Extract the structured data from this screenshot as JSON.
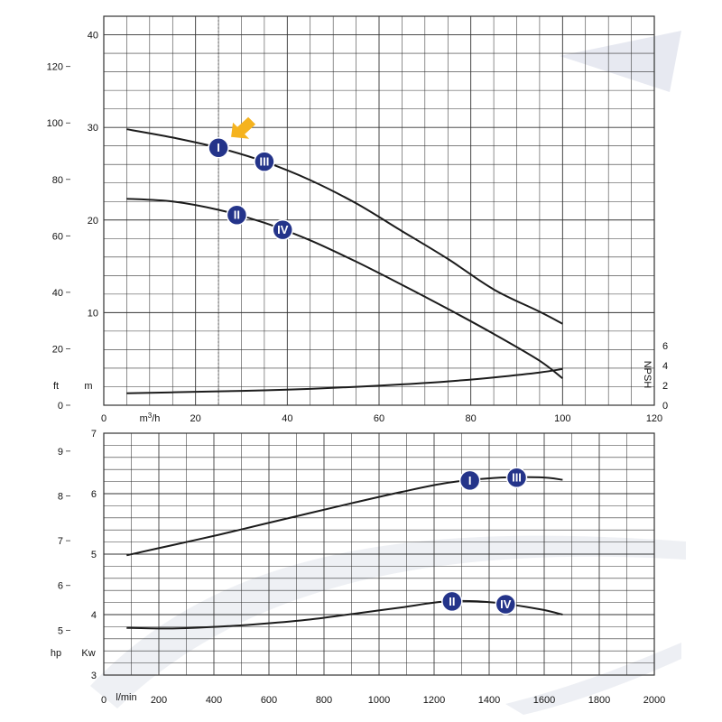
{
  "colors": {
    "grid": "#333333",
    "curve": "#1c1c1c",
    "badge": "#24348a",
    "arrow": "#f5b31e",
    "watermark": "#e3e6ee"
  },
  "chart_data": [
    {
      "type": "line",
      "title": "",
      "x_axis": {
        "unit": "m3/h",
        "ticks": [
          0,
          20,
          40,
          60,
          80,
          100,
          120
        ],
        "range": [
          0,
          120
        ]
      },
      "y_axis_left_m": {
        "unit": "m",
        "ticks": [
          10,
          20,
          30,
          40
        ],
        "range": [
          0,
          42
        ]
      },
      "y_axis_left_ft": {
        "unit": "ft",
        "ticks": [
          0,
          20,
          40,
          60,
          80,
          100,
          120
        ],
        "range": [
          0,
          137.8
        ]
      },
      "y_axis_right": {
        "unit": "NPSH",
        "ticks": [
          0,
          2,
          4,
          6
        ],
        "range": [
          0,
          6
        ]
      },
      "grid": true,
      "series": [
        {
          "name": "I",
          "markers": [
            "I",
            "III"
          ],
          "x": [
            5,
            15,
            25,
            35,
            45,
            55,
            65,
            75,
            85,
            95,
            100
          ],
          "y": [
            29.8,
            28.9,
            27.8,
            26.3,
            24.3,
            21.8,
            18.8,
            15.8,
            12.5,
            10.1,
            8.8
          ]
        },
        {
          "name": "II",
          "markers": [
            "II",
            "IV"
          ],
          "x": [
            5,
            15,
            25,
            35,
            45,
            55,
            65,
            75,
            85,
            95,
            100
          ],
          "y": [
            22.3,
            22.0,
            21.1,
            19.7,
            17.8,
            15.5,
            13.0,
            10.4,
            7.7,
            4.8,
            2.9
          ]
        },
        {
          "name": "NPSH",
          "axis": "right",
          "x": [
            5,
            15,
            25,
            35,
            45,
            55,
            65,
            75,
            85,
            95,
            100
          ],
          "y": [
            1.2,
            1.3,
            1.4,
            1.5,
            1.65,
            1.85,
            2.1,
            2.4,
            2.8,
            3.3,
            3.65
          ]
        }
      ]
    },
    {
      "type": "line",
      "title": "",
      "x_axis": {
        "unit": "l/min",
        "ticks": [
          0,
          200,
          400,
          600,
          800,
          1000,
          1200,
          1400,
          1600,
          1800,
          2000
        ],
        "range": [
          0,
          2000
        ]
      },
      "y_axis_left_kw": {
        "unit": "Kw",
        "ticks": [
          3,
          4,
          5,
          6,
          7
        ],
        "range": [
          3,
          7
        ]
      },
      "y_axis_left_hp": {
        "unit": "hp",
        "ticks": [
          5,
          6,
          7,
          8,
          9
        ],
        "range": [
          4.0,
          9.4
        ]
      },
      "grid": true,
      "series": [
        {
          "name": "I",
          "markers": [
            "I",
            "III"
          ],
          "x": [
            83,
            250,
            417,
            583,
            750,
            917,
            1083,
            1250,
            1417,
            1583,
            1667
          ],
          "y": [
            4.98,
            5.15,
            5.32,
            5.5,
            5.68,
            5.86,
            6.03,
            6.18,
            6.26,
            6.27,
            6.23
          ]
        },
        {
          "name": "II",
          "markers": [
            "II",
            "IV"
          ],
          "x": [
            83,
            250,
            417,
            583,
            750,
            917,
            1083,
            1250,
            1417,
            1583,
            1667
          ],
          "y": [
            3.78,
            3.77,
            3.8,
            3.85,
            3.92,
            4.02,
            4.12,
            4.22,
            4.2,
            4.09,
            4.0
          ]
        }
      ]
    }
  ]
}
